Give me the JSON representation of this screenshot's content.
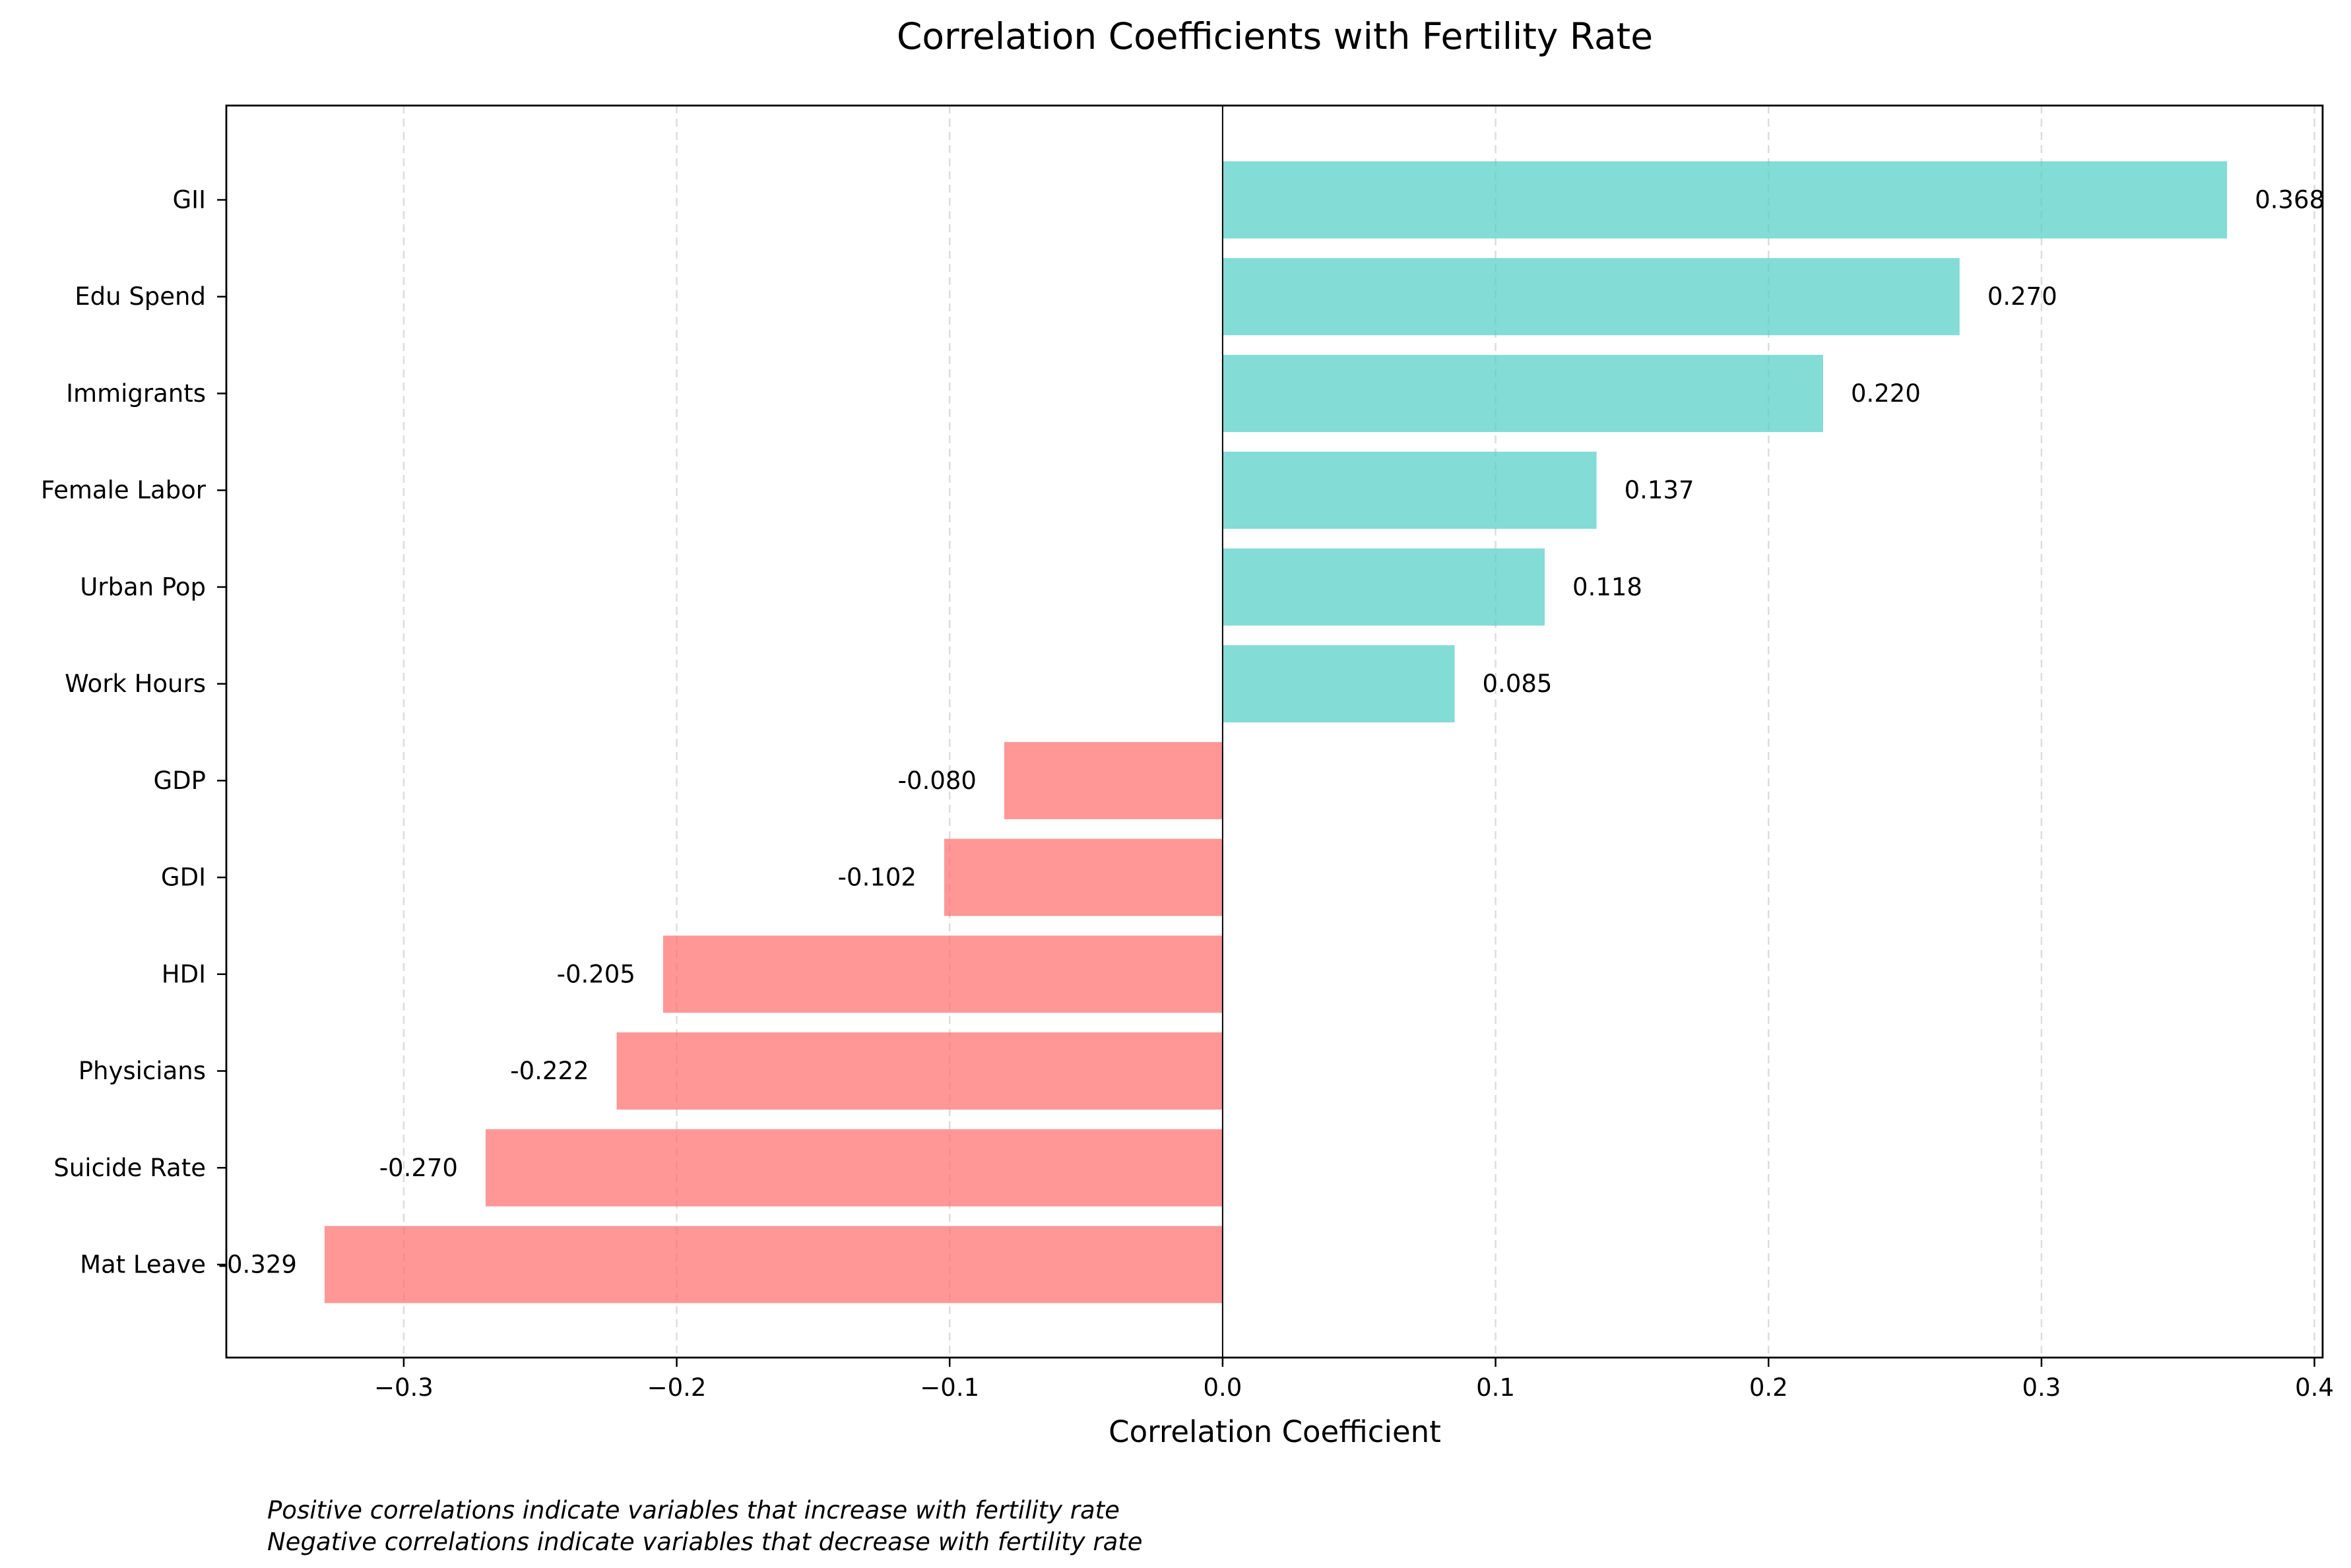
{
  "chart_data": {
    "type": "bar",
    "orientation": "horizontal",
    "title": "Correlation Coefficients with Fertility Rate",
    "xlabel": "Correlation Coefficient",
    "ylabel": "",
    "xlim": [
      -0.365,
      0.403
    ],
    "xticks": [
      -0.3,
      -0.2,
      -0.1,
      0.0,
      0.1,
      0.2,
      0.3,
      0.4
    ],
    "xtick_labels": [
      "−0.3",
      "−0.2",
      "−0.1",
      "0.0",
      "0.1",
      "0.2",
      "0.3",
      "0.4"
    ],
    "grid": "x-axis dashed",
    "categories": [
      "GII",
      "Edu Spend",
      "Immigrants",
      "Female Labor",
      "Urban Pop",
      "Work Hours",
      "GDP",
      "GDI",
      "HDI",
      "Physicians",
      "Suicide Rate",
      "Mat Leave"
    ],
    "values": [
      0.368,
      0.27,
      0.22,
      0.137,
      0.118,
      0.085,
      -0.08,
      -0.102,
      -0.205,
      -0.222,
      -0.27,
      -0.329
    ],
    "value_labels": [
      "0.368",
      "0.270",
      "0.220",
      "0.137",
      "0.118",
      "0.085",
      "-0.080",
      "-0.102",
      "-0.205",
      "-0.222",
      "-0.270",
      "-0.329"
    ],
    "colors": {
      "positive": "#4ecdc4",
      "negative": "#ff6b6b",
      "bar_opacity": 0.7,
      "grid": "#dddddd",
      "zero_line": "#000000"
    }
  },
  "notes": [
    "Positive correlations indicate variables that increase with fertility rate",
    "Negative correlations indicate variables that decrease with fertility rate"
  ]
}
